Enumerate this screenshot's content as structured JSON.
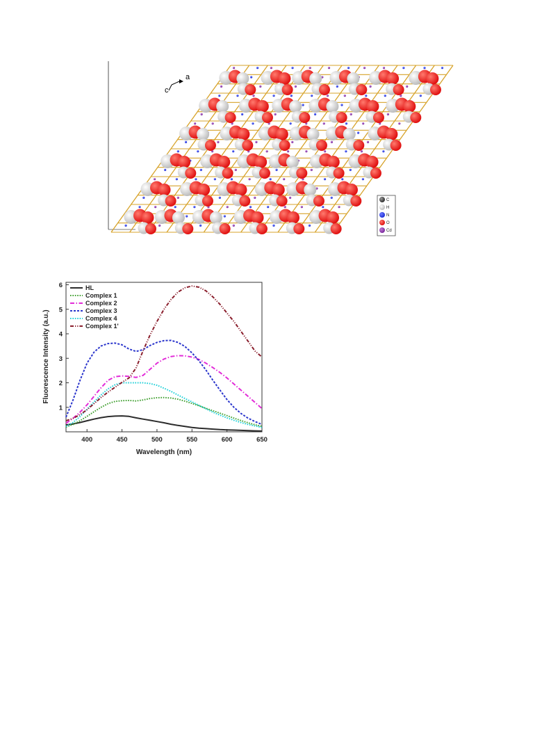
{
  "crystal_figure": {
    "axis_labels": {
      "a": "a",
      "c": "c"
    },
    "atom_key": [
      {
        "symbol": "C",
        "color": "#3b3b3b"
      },
      {
        "symbol": "H",
        "color": "#e6e6e6"
      },
      {
        "symbol": "N",
        "color": "#1f2fd6"
      },
      {
        "symbol": "O",
        "color": "#e01010"
      },
      {
        "symbol": "Cd",
        "color": "#7a2a9c"
      }
    ],
    "colors": {
      "oxygen": "#e01010",
      "hydrogen": "#e8e8e8",
      "bond": "#d7a32a",
      "cadmium": "#7a2a9c",
      "nitrogen": "#1f2fd6"
    }
  },
  "chart_data": {
    "type": "line",
    "xlabel": "Wavelength (nm)",
    "ylabel": "Fluorescence Intensity (a.u.)",
    "xlim": [
      370,
      650
    ],
    "ylim": [
      0,
      6.1
    ],
    "xticks": [
      400,
      450,
      500,
      550,
      600,
      650
    ],
    "yticks": [
      1,
      2,
      3,
      4,
      5,
      6
    ],
    "legend_position": "top-left",
    "x": [
      370,
      380,
      390,
      400,
      410,
      420,
      430,
      440,
      450,
      460,
      470,
      480,
      490,
      500,
      510,
      520,
      530,
      540,
      550,
      560,
      570,
      580,
      590,
      600,
      610,
      620,
      630,
      640,
      650
    ],
    "series": [
      {
        "name": "HL",
        "color": "#2b2b2b",
        "dash": "solid",
        "values": [
          0.28,
          0.32,
          0.38,
          0.45,
          0.52,
          0.58,
          0.62,
          0.64,
          0.65,
          0.63,
          0.57,
          0.52,
          0.47,
          0.42,
          0.37,
          0.31,
          0.26,
          0.22,
          0.18,
          0.15,
          0.13,
          0.11,
          0.09,
          0.08,
          0.07,
          0.06,
          0.05,
          0.04,
          0.03
        ]
      },
      {
        "name": "Complex 1",
        "color": "#3f9f2f",
        "dash": "dot",
        "values": [
          0.2,
          0.3,
          0.45,
          0.63,
          0.82,
          1.0,
          1.15,
          1.24,
          1.27,
          1.28,
          1.26,
          1.3,
          1.36,
          1.39,
          1.4,
          1.38,
          1.33,
          1.25,
          1.16,
          1.06,
          0.96,
          0.86,
          0.76,
          0.66,
          0.56,
          0.46,
          0.37,
          0.29,
          0.22
        ]
      },
      {
        "name": "Complex 2",
        "color": "#e22bd8",
        "dash": "dashdot",
        "values": [
          0.35,
          0.55,
          0.8,
          1.1,
          1.45,
          1.8,
          2.1,
          2.25,
          2.28,
          2.26,
          2.22,
          2.3,
          2.55,
          2.8,
          2.97,
          3.07,
          3.11,
          3.1,
          3.05,
          2.95,
          2.8,
          2.62,
          2.42,
          2.2,
          1.95,
          1.7,
          1.45,
          1.2,
          0.95
        ]
      },
      {
        "name": "Complex 3",
        "color": "#2a35cc",
        "dash": "dash",
        "values": [
          0.6,
          1.3,
          2.1,
          2.8,
          3.25,
          3.5,
          3.6,
          3.62,
          3.55,
          3.38,
          3.28,
          3.35,
          3.52,
          3.65,
          3.72,
          3.73,
          3.65,
          3.48,
          3.22,
          2.9,
          2.52,
          2.1,
          1.7,
          1.32,
          1.0,
          0.75,
          0.56,
          0.42,
          0.3
        ]
      },
      {
        "name": "Complex 4",
        "color": "#20d0d8",
        "dash": "dot",
        "values": [
          0.22,
          0.38,
          0.62,
          0.92,
          1.22,
          1.5,
          1.75,
          1.92,
          2.0,
          2.0,
          2.0,
          2.0,
          1.97,
          1.9,
          1.78,
          1.65,
          1.5,
          1.36,
          1.22,
          1.08,
          0.94,
          0.8,
          0.68,
          0.57,
          0.47,
          0.38,
          0.3,
          0.24,
          0.18
        ]
      },
      {
        "name": "Complex 1'",
        "color": "#8a1e2c",
        "dash": "dashdotdot",
        "values": [
          0.45,
          0.55,
          0.7,
          0.9,
          1.15,
          1.4,
          1.62,
          1.82,
          2.02,
          2.2,
          2.6,
          3.3,
          3.95,
          4.5,
          5.0,
          5.4,
          5.7,
          5.88,
          5.95,
          5.9,
          5.75,
          5.5,
          5.2,
          4.85,
          4.5,
          4.1,
          3.7,
          3.3,
          3.05
        ]
      }
    ]
  }
}
